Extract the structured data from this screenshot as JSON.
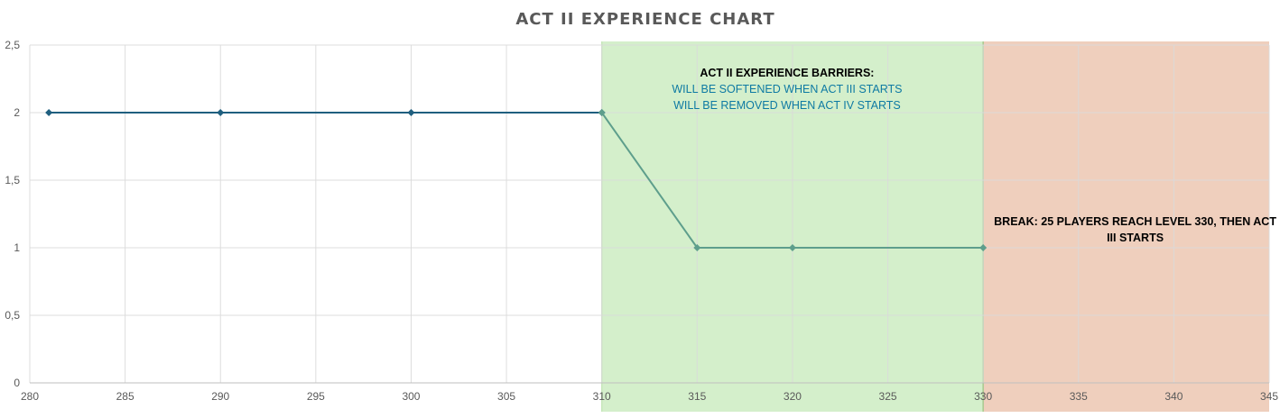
{
  "chart_data": {
    "type": "line",
    "title": "ACT II EXPERIENCE CHART",
    "xlabel": "",
    "ylabel": "",
    "xlim": [
      280,
      345
    ],
    "ylim": [
      0,
      2.5
    ],
    "x_ticks": [
      {
        "value": 280,
        "label": "280"
      },
      {
        "value": 285,
        "label": "285"
      },
      {
        "value": 290,
        "label": "290"
      },
      {
        "value": 295,
        "label": "295"
      },
      {
        "value": 300,
        "label": "300"
      },
      {
        "value": 305,
        "label": "305"
      },
      {
        "value": 310,
        "label": "310"
      },
      {
        "value": 315,
        "label": "315"
      },
      {
        "value": 320,
        "label": "320"
      },
      {
        "value": 325,
        "label": "325"
      },
      {
        "value": 330,
        "label": "330"
      },
      {
        "value": 335,
        "label": "335"
      },
      {
        "value": 340,
        "label": "340"
      },
      {
        "value": 345,
        "label": "345"
      }
    ],
    "y_ticks": [
      {
        "value": 0,
        "label": "0"
      },
      {
        "value": 0.5,
        "label": "0,5"
      },
      {
        "value": 1,
        "label": "1"
      },
      {
        "value": 1.5,
        "label": "1,5"
      },
      {
        "value": 2,
        "label": "2"
      },
      {
        "value": 2.5,
        "label": "2,5"
      }
    ],
    "grid": true,
    "series": [
      {
        "color": "#1f5f7f",
        "points": [
          {
            "x": 281,
            "y": 2
          },
          {
            "x": 290,
            "y": 2
          },
          {
            "x": 300,
            "y": 2
          },
          {
            "x": 310,
            "y": 2
          }
        ]
      },
      {
        "color": "#5e9e8c",
        "points": [
          {
            "x": 310,
            "y": 2
          },
          {
            "x": 315,
            "y": 1
          },
          {
            "x": 320,
            "y": 1
          },
          {
            "x": 325,
            "y": 1
          },
          {
            "x": 330,
            "y": 1
          }
        ],
        "markers_at": [
          310,
          315,
          320,
          330
        ]
      }
    ],
    "regions": [
      {
        "x_from": 310,
        "x_to": 330,
        "color": "#d4efcb",
        "lines": [
          {
            "text": "ACT II EXPERIENCE BARRIERS:",
            "style": "bold"
          },
          {
            "text": "WILL BE SOFTENED WHEN ACT III STARTS",
            "style": "accent"
          },
          {
            "text": "WILL BE REMOVED WHEN ACT IV STARTS",
            "style": "accent"
          }
        ]
      },
      {
        "x_from": 330,
        "x_to": 345,
        "color": "#efcfbd",
        "lines": [
          {
            "text": "BREAK: 25 PLAYERS REACH LEVEL 330, THEN ACT",
            "style": "bold"
          },
          {
            "text": "III STARTS",
            "style": "bold"
          }
        ]
      }
    ]
  }
}
